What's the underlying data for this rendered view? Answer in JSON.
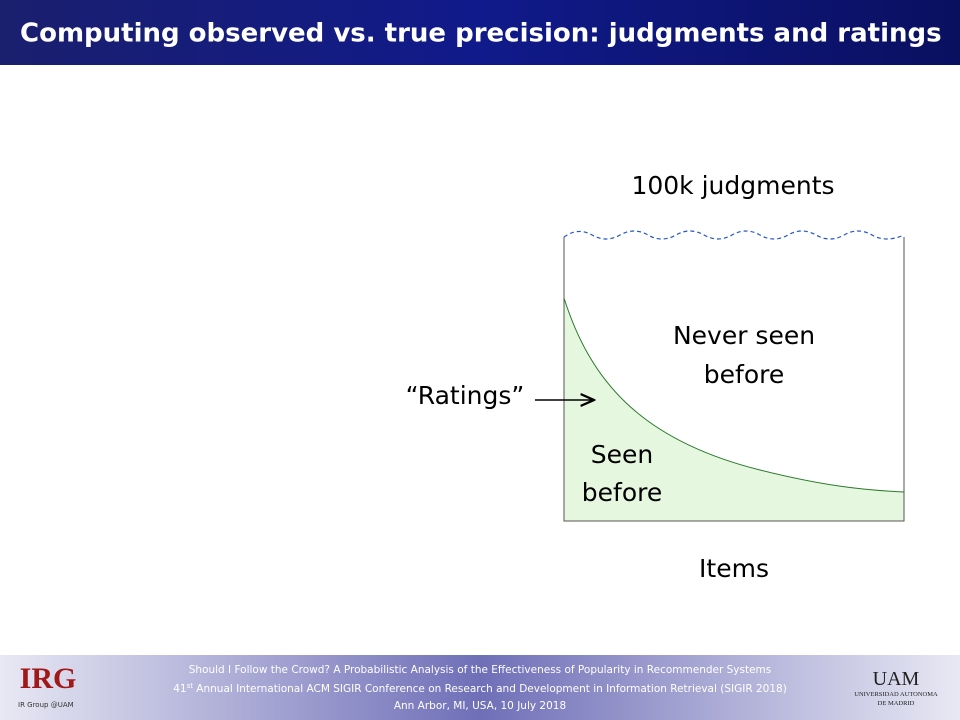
{
  "header": {
    "title": "Computing observed vs. true precision: judgments and ratings"
  },
  "diagram": {
    "top_label": "100k judgments",
    "region_upper": [
      "Never seen",
      "before"
    ],
    "region_lower": [
      "Seen",
      "before"
    ],
    "arrow_label": "“Ratings”",
    "bottom_label": "Items"
  },
  "footer": {
    "line1": "Should I Follow the Crowd? A Probabilistic Analysis of the Effectiveness of Popularity in Recommender Systems",
    "line2_number": "41",
    "line2_suffix": "st",
    "line2_rest": " Annual International ACM SIGIR Conference on Research and Development in Information Retrieval (SIGIR 2018)",
    "line3": "Ann Arbor, MI, USA, 10 July 2018",
    "left_logo": "IRG",
    "left_logo_sub": "IR Group @UAM",
    "right_logo": "UAM",
    "right_logo_sub": "UNIVERSIDAD AUTONOMA",
    "right_logo_sub2": "DE MADRID"
  }
}
